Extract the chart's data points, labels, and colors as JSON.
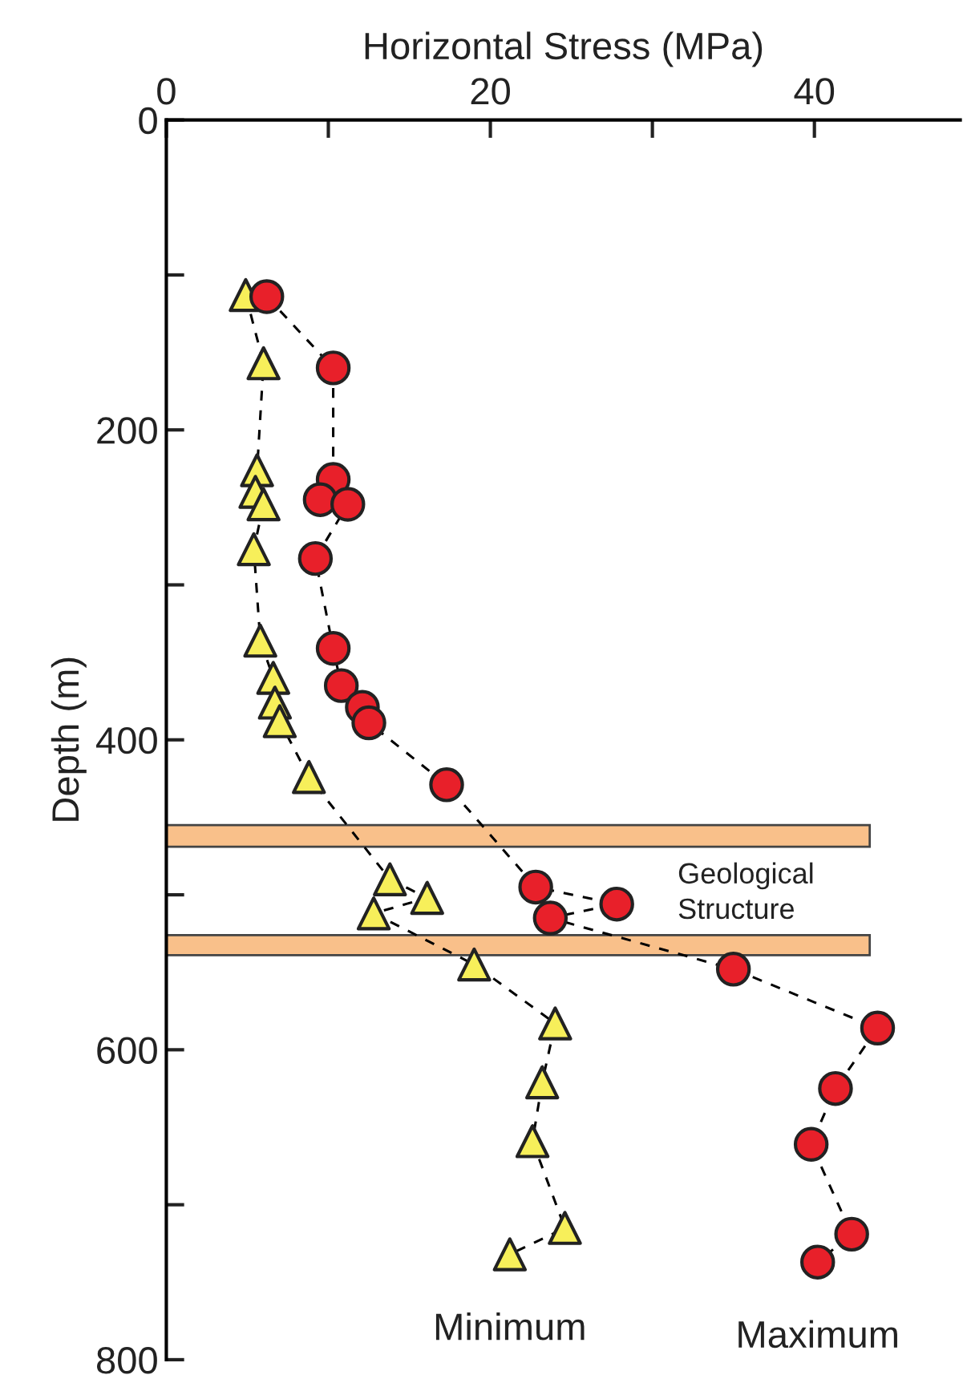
{
  "chart_data": {
    "type": "line",
    "xlabel": "Horizontal Stress (MPa)",
    "ylabel": "Depth (m)",
    "xlim": [
      0,
      49
    ],
    "xticks": [
      0,
      {
        "value": 10,
        "label": null
      },
      20,
      {
        "value": 30,
        "label": null
      },
      40
    ],
    "ylim": [
      800,
      0
    ],
    "yticks": [
      0,
      {
        "value": 100,
        "label": null
      },
      200,
      {
        "value": 300,
        "label": null
      },
      400,
      {
        "value": 500,
        "label": null
      },
      600,
      {
        "value": 700,
        "label": null
      },
      800
    ],
    "grid": false,
    "legend": false,
    "line_style": "dashed",
    "series": [
      {
        "name": "Minimum",
        "color": "#f7ef5a",
        "marker": "triangle",
        "x": [
          4.9,
          6.0,
          5.6,
          5.5,
          6.0,
          5.4,
          5.8,
          6.6,
          6.7,
          7.0,
          8.8,
          13.8,
          16.1,
          12.8,
          19.0,
          24.0,
          23.2,
          22.6,
          24.6,
          21.2
        ],
        "values": [
          113,
          157,
          226,
          240,
          248,
          277,
          336,
          360,
          376,
          388,
          424,
          490,
          502,
          512,
          545,
          583,
          621,
          659,
          715,
          732
        ]
      },
      {
        "name": "Maximum",
        "color": "#e8202a",
        "marker": "circle",
        "x": [
          6.2,
          10.3,
          10.3,
          9.5,
          11.2,
          9.2,
          10.3,
          10.8,
          12.1,
          12.5,
          17.3,
          22.8,
          27.8,
          23.7,
          35.0,
          43.9,
          41.3,
          39.8,
          42.3,
          40.2
        ],
        "values": [
          114,
          160,
          232,
          245,
          248,
          283,
          341,
          365,
          379,
          389,
          429,
          495,
          506,
          515,
          548,
          586,
          625,
          661,
          719,
          737
        ]
      }
    ],
    "bands": [
      {
        "axis": "y",
        "from": 455,
        "to": 469,
        "color": "#f9c08a"
      },
      {
        "axis": "y",
        "from": 526,
        "to": 539,
        "color": "#f9c08a"
      }
    ],
    "annotations": [
      "Geological\nStructure"
    ]
  }
}
